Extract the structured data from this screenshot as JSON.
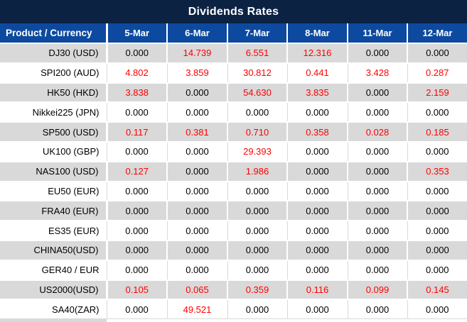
{
  "title": "Dividends Rates",
  "colors": {
    "title_bg": "#0b2243",
    "header_bg": "#0d4a9f",
    "header_text": "#ffffff",
    "row_stripe": "#d9d9d9",
    "zero_value_text": "#000000",
    "nonzero_value_text": "#ff0000"
  },
  "table": {
    "columns": [
      "Product / Currency",
      "5-Mar",
      "6-Mar",
      "7-Mar",
      "8-Mar",
      "11-Mar",
      "12-Mar"
    ],
    "rows": [
      {
        "product": "DJ30 (USD)",
        "values": [
          "0.000",
          "14.739",
          "6.551",
          "12.316",
          "0.000",
          "0.000"
        ]
      },
      {
        "product": "SPI200 (AUD)",
        "values": [
          "4.802",
          "3.859",
          "30.812",
          "0.441",
          "3.428",
          "0.287"
        ]
      },
      {
        "product": "HK50 (HKD)",
        "values": [
          "3.838",
          "0.000",
          "54.630",
          "3.835",
          "0.000",
          "2.159"
        ]
      },
      {
        "product": "Nikkei225 (JPN)",
        "values": [
          "0.000",
          "0.000",
          "0.000",
          "0.000",
          "0.000",
          "0.000"
        ]
      },
      {
        "product": "SP500 (USD)",
        "values": [
          "0.117",
          "0.381",
          "0.710",
          "0.358",
          "0.028",
          "0.185"
        ]
      },
      {
        "product": "UK100 (GBP)",
        "values": [
          "0.000",
          "0.000",
          "29.393",
          "0.000",
          "0.000",
          "0.000"
        ]
      },
      {
        "product": "NAS100 (USD)",
        "values": [
          "0.127",
          "0.000",
          "1.986",
          "0.000",
          "0.000",
          "0.353"
        ]
      },
      {
        "product": "EU50 (EUR)",
        "values": [
          "0.000",
          "0.000",
          "0.000",
          "0.000",
          "0.000",
          "0.000"
        ]
      },
      {
        "product": "FRA40 (EUR)",
        "values": [
          "0.000",
          "0.000",
          "0.000",
          "0.000",
          "0.000",
          "0.000"
        ]
      },
      {
        "product": "ES35 (EUR)",
        "values": [
          "0.000",
          "0.000",
          "0.000",
          "0.000",
          "0.000",
          "0.000"
        ]
      },
      {
        "product": "CHINA50(USD)",
        "values": [
          "0.000",
          "0.000",
          "0.000",
          "0.000",
          "0.000",
          "0.000"
        ]
      },
      {
        "product": "GER40 / EUR",
        "values": [
          "0.000",
          "0.000",
          "0.000",
          "0.000",
          "0.000",
          "0.000"
        ]
      },
      {
        "product": "US2000(USD)",
        "values": [
          "0.105",
          "0.065",
          "0.359",
          "0.116",
          "0.099",
          "0.145"
        ]
      },
      {
        "product": "SA40(ZAR)",
        "values": [
          "0.000",
          "49.521",
          "0.000",
          "0.000",
          "0.000",
          "0.000"
        ]
      }
    ]
  }
}
